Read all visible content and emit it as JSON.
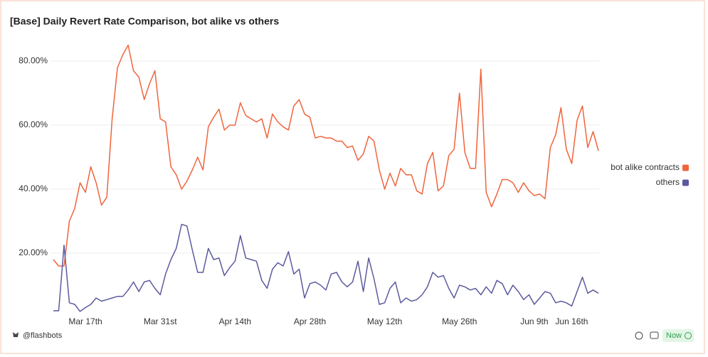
{
  "chart_data": {
    "type": "line",
    "title": "[Base] Daily Revert Rate Comparison, bot alike vs others",
    "categories": [
      null,
      null,
      null,
      null,
      null,
      null,
      "Mar 17th",
      null,
      null,
      null,
      null,
      null,
      null,
      null,
      null,
      null,
      null,
      null,
      null,
      null,
      "Mar 31st",
      null,
      null,
      null,
      null,
      null,
      null,
      null,
      null,
      null,
      null,
      null,
      null,
      null,
      "Apr 14th",
      null,
      null,
      null,
      null,
      null,
      null,
      null,
      null,
      null,
      null,
      null,
      null,
      null,
      "Apr 28th",
      null,
      null,
      null,
      null,
      null,
      null,
      null,
      null,
      null,
      null,
      null,
      null,
      null,
      "May 12th",
      null,
      null,
      null,
      null,
      null,
      null,
      null,
      null,
      null,
      null,
      null,
      null,
      null,
      "May 26th",
      null,
      null,
      null,
      null,
      null,
      null,
      null,
      null,
      null,
      null,
      null,
      null,
      null,
      "Jun 9th",
      null,
      null,
      null,
      null,
      null,
      null,
      "Jun 16th",
      null,
      null,
      null,
      null,
      null
    ],
    "series": [
      {
        "name": "bot alike contracts",
        "color": "#f0643c",
        "values": [
          18,
          16,
          16,
          30,
          34,
          42,
          39,
          47,
          42,
          35,
          37.5,
          62,
          78,
          82,
          85,
          77,
          75,
          68,
          73,
          77,
          62,
          61,
          47,
          44.5,
          40,
          42.5,
          46,
          50,
          46,
          59.5,
          62.5,
          65,
          58.5,
          60,
          60,
          67,
          63,
          62,
          61,
          62,
          56,
          63.5,
          61,
          59.5,
          58.5,
          66,
          68,
          63.5,
          62.5,
          56,
          56.5,
          56,
          56,
          55,
          55,
          53,
          53.5,
          49,
          51,
          56.5,
          55,
          46,
          40,
          45,
          41,
          46.5,
          44.5,
          44.5,
          39.5,
          38.5,
          48,
          51.5,
          39.5,
          41,
          50.5,
          52.5,
          70,
          51.5,
          46.5,
          46.5,
          77.5,
          39,
          34.5,
          38.5,
          43,
          43,
          42,
          39,
          42,
          39.5,
          38,
          38.5,
          37,
          53,
          57,
          65.5,
          52.5,
          48,
          61.5,
          66,
          53,
          58,
          52
        ]
      },
      {
        "name": "others",
        "color": "#5b5a9e",
        "values": [
          2,
          2,
          22.5,
          4.5,
          4,
          1.8,
          3,
          4,
          6,
          5,
          5.5,
          6,
          6.5,
          6.5,
          8.5,
          11,
          8,
          11,
          11.5,
          9,
          7,
          13.5,
          18,
          21.5,
          29,
          28.5,
          21,
          14,
          14,
          21.5,
          18,
          18.5,
          13,
          15.5,
          17.5,
          25.5,
          18.5,
          18,
          17.5,
          11.5,
          9,
          15,
          17,
          16,
          20.5,
          13.5,
          15,
          6,
          10.5,
          11,
          10,
          8.5,
          13.5,
          14,
          11,
          9.5,
          11,
          17.5,
          8,
          18.5,
          12,
          4,
          4.5,
          9,
          11,
          4.5,
          6,
          5,
          5.5,
          7,
          9.5,
          14,
          12.5,
          13,
          9,
          6,
          10,
          9.5,
          8.5,
          9,
          7,
          9.5,
          7.5,
          11.5,
          10.5,
          7,
          10,
          8,
          5.5,
          7,
          4,
          6,
          8,
          7.5,
          4.5,
          5,
          4.5,
          3.5,
          8,
          12.5,
          7.5,
          8.5,
          7.5
        ]
      }
    ],
    "ylim": [
      0,
      88
    ],
    "yticks": [
      {
        "value": 20,
        "label": "20.00%"
      },
      {
        "value": 40,
        "label": "40.00%"
      },
      {
        "value": 60,
        "label": "60.00%"
      },
      {
        "value": 80,
        "label": "80.00%"
      }
    ],
    "grid": true,
    "legend": "right"
  },
  "footer": {
    "source": "@flashbots",
    "status": "Now"
  }
}
